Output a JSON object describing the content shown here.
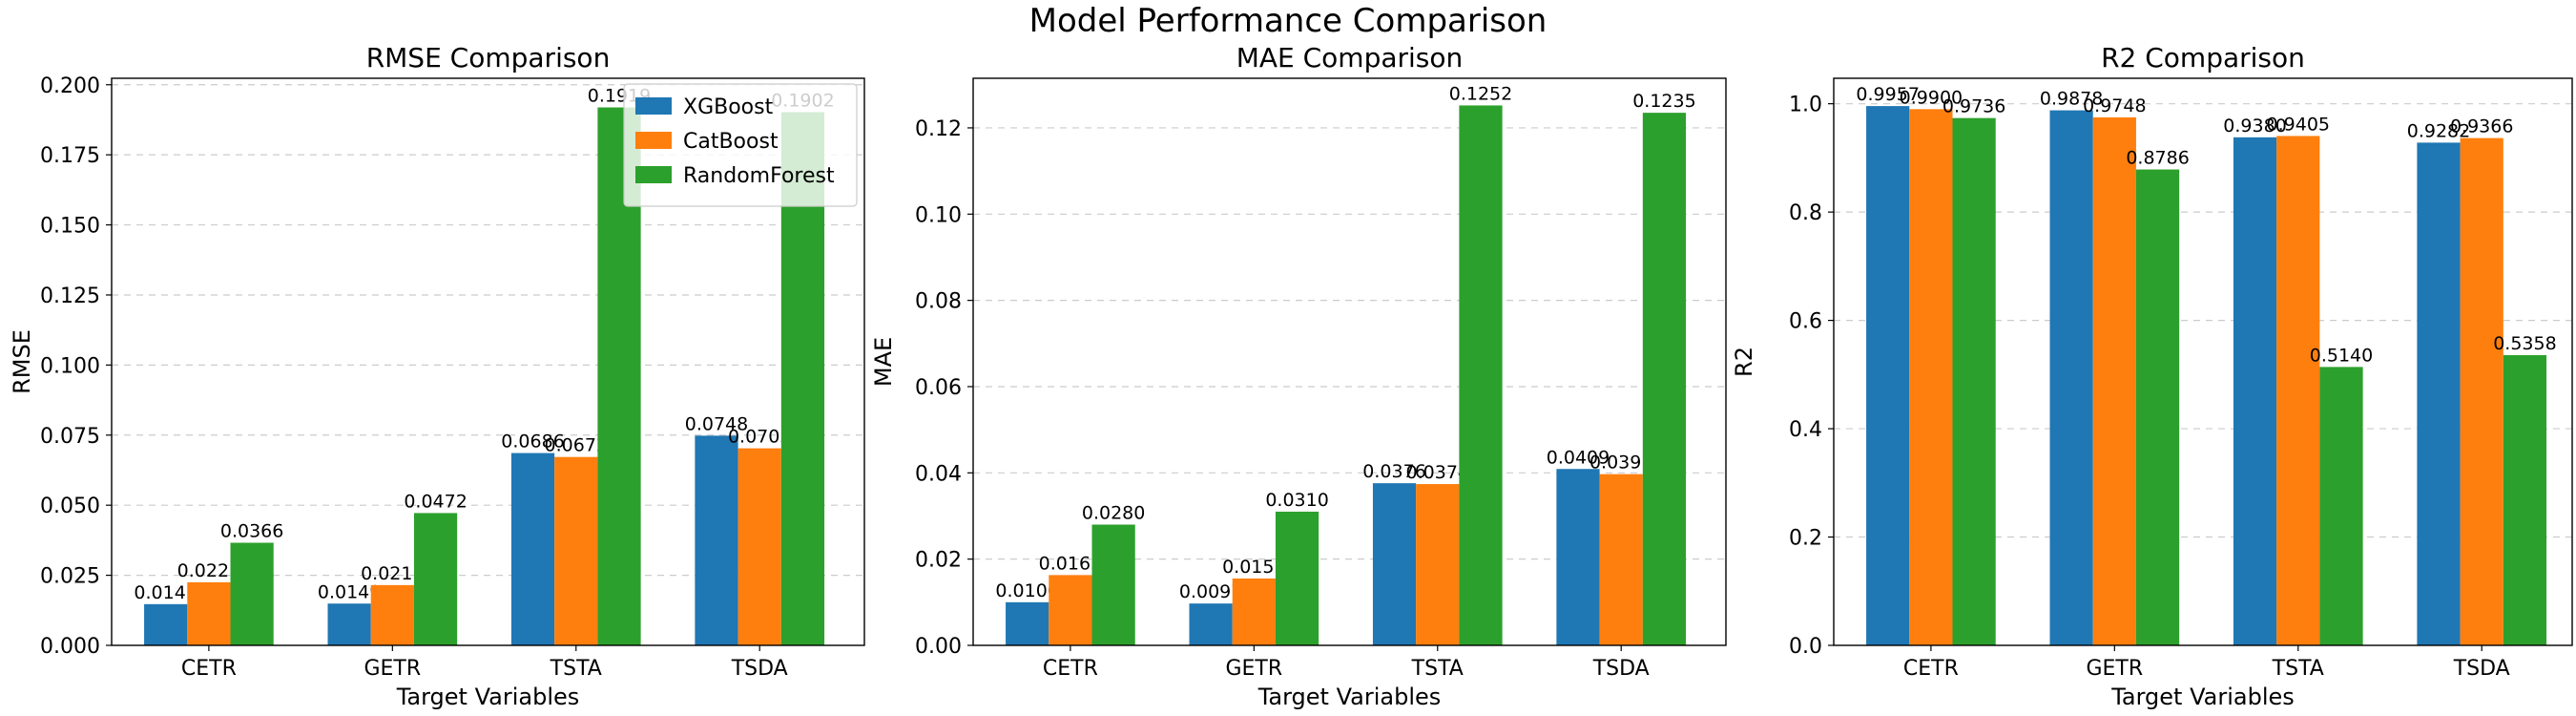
{
  "figure": {
    "title": "Model Performance Comparison"
  },
  "colors": {
    "XGBoost": "#1f77b4",
    "CatBoost": "#ff7f0e",
    "RandomForest": "#2ca02c"
  },
  "chart_data": [
    {
      "type": "bar",
      "title": "RMSE Comparison",
      "xlabel": "Target Variables",
      "ylabel": "RMSE",
      "categories": [
        "CETR",
        "GETR",
        "TSTA",
        "TSDA"
      ],
      "ylim": [
        0,
        0.2023
      ],
      "yticks": [
        "0.000",
        "0.025",
        "0.050",
        "0.075",
        "0.100",
        "0.125",
        "0.150",
        "0.175",
        "0.200"
      ],
      "grid": "y-dashed",
      "legend": "top-right",
      "series": [
        {
          "name": "XGBoost",
          "values": [
            0.0147,
            0.0149,
            0.0686,
            0.0748
          ],
          "labels": [
            "0.0147",
            "0.0149",
            "0.0686",
            "0.0748"
          ]
        },
        {
          "name": "CatBoost",
          "values": [
            0.0225,
            0.0215,
            0.0672,
            0.0703
          ],
          "labels": [
            "0.0225",
            "0.0215",
            "0.0672",
            "0.0703"
          ]
        },
        {
          "name": "RandomForest",
          "values": [
            0.0366,
            0.0472,
            0.1919,
            0.1902
          ],
          "labels": [
            "0.0366",
            "0.0472",
            "0.1919",
            "0.1902"
          ]
        }
      ]
    },
    {
      "type": "bar",
      "title": "MAE Comparison",
      "xlabel": "Target Variables",
      "ylabel": "MAE",
      "categories": [
        "CETR",
        "GETR",
        "TSTA",
        "TSDA"
      ],
      "ylim": [
        0,
        0.1315
      ],
      "yticks": [
        "0.00",
        "0.02",
        "0.04",
        "0.06",
        "0.08",
        "0.10",
        "0.12"
      ],
      "grid": "y-dashed",
      "series": [
        {
          "name": "XGBoost",
          "values": [
            0.01,
            0.0097,
            0.0376,
            0.0409
          ],
          "labels": [
            "0.0100",
            "0.0097",
            "0.0376",
            "0.0409"
          ]
        },
        {
          "name": "CatBoost",
          "values": [
            0.0163,
            0.0155,
            0.0374,
            0.0397
          ],
          "labels": [
            "0.0163",
            "0.0155",
            "0.0374",
            "0.0397"
          ]
        },
        {
          "name": "RandomForest",
          "values": [
            0.028,
            0.031,
            0.1252,
            0.1235
          ],
          "labels": [
            "0.0280",
            "0.0310",
            "0.1252",
            "0.1235"
          ]
        }
      ]
    },
    {
      "type": "bar",
      "title": "R2 Comparison",
      "xlabel": "Target Variables",
      "ylabel": "R2",
      "categories": [
        "CETR",
        "GETR",
        "TSTA",
        "TSDA"
      ],
      "ylim": [
        0,
        1.047
      ],
      "yticks": [
        "0.0",
        "0.2",
        "0.4",
        "0.6",
        "0.8",
        "1.0"
      ],
      "grid": "y-dashed",
      "series": [
        {
          "name": "XGBoost",
          "values": [
            0.9957,
            0.9878,
            0.938,
            0.9282
          ],
          "labels": [
            "0.9957",
            "0.9878",
            "0.9380",
            "0.9282"
          ]
        },
        {
          "name": "CatBoost",
          "values": [
            0.99,
            0.9748,
            0.9405,
            0.9366
          ],
          "labels": [
            "0.9900",
            "0.9748",
            "0.9405",
            "0.9366"
          ]
        },
        {
          "name": "RandomForest",
          "values": [
            0.9736,
            0.8786,
            0.514,
            0.5358
          ],
          "labels": [
            "0.9736",
            "0.8786",
            "0.5140",
            "0.5358"
          ]
        }
      ]
    }
  ]
}
